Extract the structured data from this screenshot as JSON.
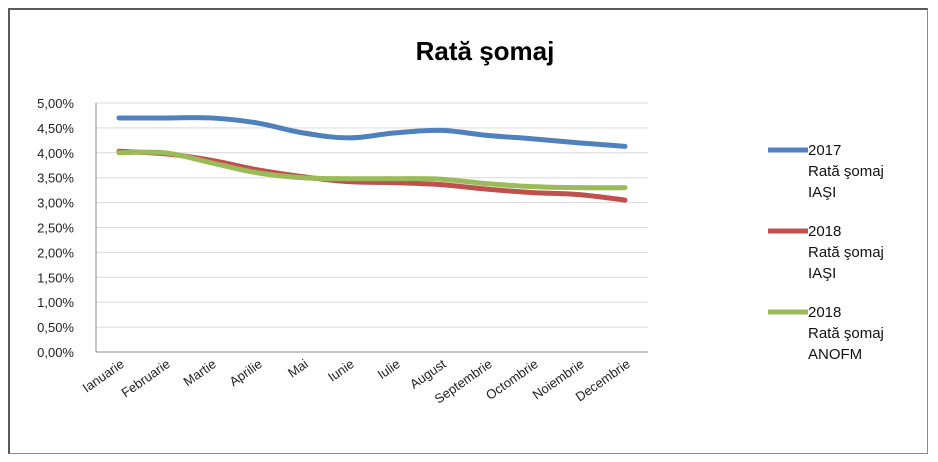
{
  "chart_data": {
    "type": "line",
    "title": "Rată şomaj",
    "categories": [
      "Ianuarie",
      "Februarie",
      "Martie",
      "Aprilie",
      "Mai",
      "Iunie",
      "Iulie",
      "August",
      "Septembrie",
      "Octombrie",
      "Noiembrie",
      "Decembrie"
    ],
    "yticks": [
      "0,00%",
      "0,50%",
      "1,00%",
      "1,50%",
      "2,00%",
      "2,50%",
      "3,00%",
      "3,50%",
      "4,00%",
      "4,50%",
      "5,00%"
    ],
    "ylim": [
      0,
      5
    ],
    "grid": true,
    "legend_position": "right",
    "series": [
      {
        "name_lines": [
          "2017",
          "Rată şomaj",
          "IAŞI"
        ],
        "color": "#4f81bd",
        "values": [
          4.7,
          4.7,
          4.7,
          4.6,
          4.4,
          4.3,
          4.4,
          4.45,
          4.35,
          4.28,
          4.2,
          4.13
        ]
      },
      {
        "name_lines": [
          "2018",
          "Rată şomaj",
          "IAŞI"
        ],
        "color": "#c0504d",
        "values": [
          4.03,
          3.98,
          3.85,
          3.66,
          3.52,
          3.42,
          3.4,
          3.36,
          3.27,
          3.2,
          3.16,
          3.05
        ]
      },
      {
        "name_lines": [
          "2018",
          "Rată şomaj",
          "ANOFM"
        ],
        "color": "#9bbb59",
        "values": [
          4.0,
          4.0,
          3.8,
          3.6,
          3.5,
          3.48,
          3.48,
          3.47,
          3.38,
          3.32,
          3.3,
          3.3
        ]
      }
    ]
  }
}
